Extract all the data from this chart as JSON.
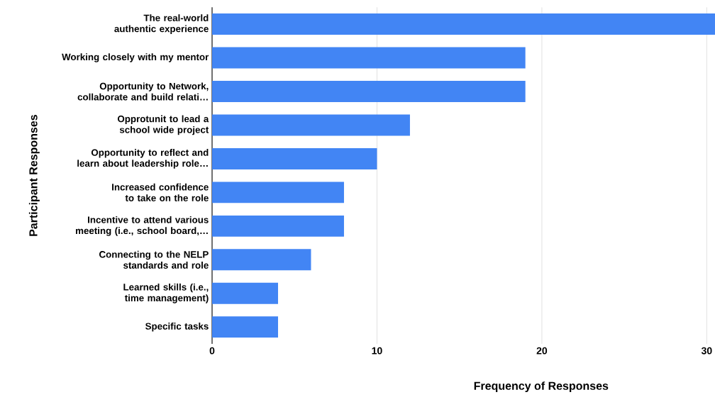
{
  "chart_data": {
    "type": "bar",
    "orientation": "horizontal",
    "xlabel": "Frequency of Responses",
    "ylabel": "Participant Responses",
    "categories": [
      "The real-world authentic experience",
      "Working closely with my mentor",
      "Opportunity to Network, collaborate and build relati…",
      "Opprotunit to lead a school wide project",
      "Opportunity to reflect and learn about leadership role…",
      "Increased confidence to take on the role",
      "Incentive to attend various meeting (i.e., school board,…",
      "Connecting to the NELP standards and role",
      "Learned skills (i.e., time management)",
      "Specific tasks"
    ],
    "values": [
      30.5,
      19,
      19,
      12,
      10,
      8,
      8,
      6,
      4,
      4
    ],
    "color": "#4285f4",
    "xlim": [
      0,
      30.5
    ],
    "xticks": [
      0,
      10,
      20,
      30
    ],
    "grid": "x"
  }
}
